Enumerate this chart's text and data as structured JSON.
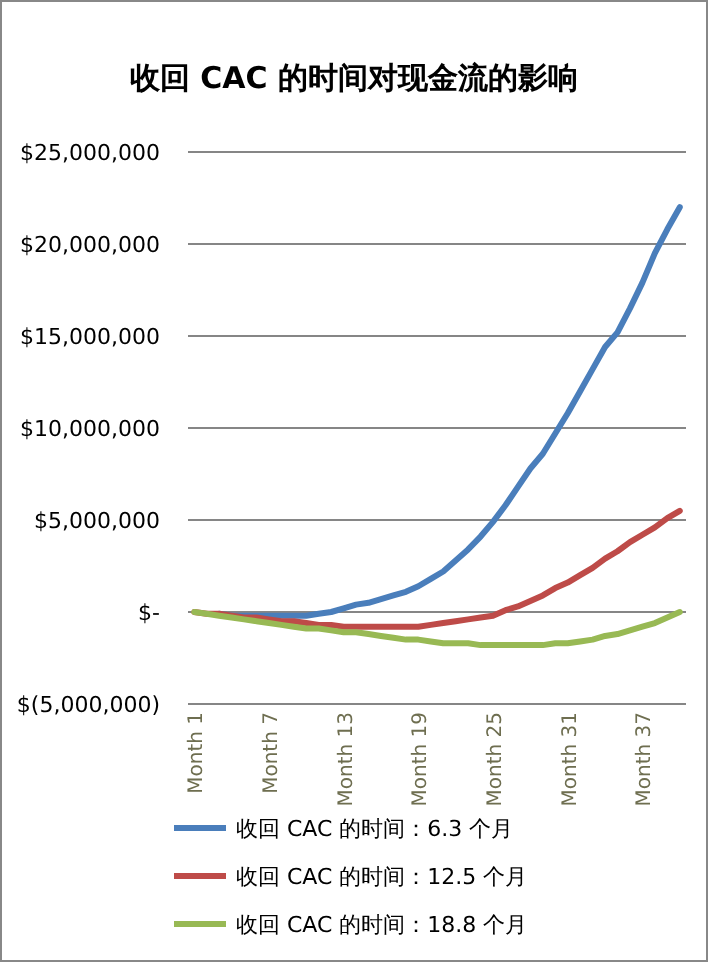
{
  "chart_data": {
    "type": "line",
    "title": "收回 CAC 的时间对现金流的影响",
    "categories": [
      "Month 1",
      null,
      null,
      null,
      null,
      null,
      "Month 7",
      null,
      null,
      null,
      null,
      null,
      "Month 13",
      null,
      null,
      null,
      null,
      null,
      "Month 19",
      null,
      null,
      null,
      null,
      null,
      "Month 25",
      null,
      null,
      null,
      null,
      null,
      "Month 31",
      null,
      null,
      null,
      null,
      null,
      "Month 37",
      null,
      null,
      null
    ],
    "ylim": [
      -5000000,
      25000000
    ],
    "yticks": [
      {
        "value": -5000000,
        "label": "$(5,000,000)"
      },
      {
        "value": 0,
        "label": "$-"
      },
      {
        "value": 5000000,
        "label": "$5,000,000"
      },
      {
        "value": 10000000,
        "label": "$10,000,000"
      },
      {
        "value": 15000000,
        "label": "$15,000,000"
      },
      {
        "value": 20000000,
        "label": "$20,000,000"
      },
      {
        "value": 25000000,
        "label": "$25,000,000"
      }
    ],
    "grid": "y",
    "legend": "bottom",
    "marker": "none",
    "line_style": "solid",
    "series": [
      {
        "name": "收回 CAC 的时间：6.3 个月",
        "color": "#4a7ebb",
        "values": [
          null,
          null,
          -100000,
          -200000,
          -200000,
          -200000,
          -200000,
          -200000,
          -200000,
          -200000,
          -100000,
          0,
          200000,
          400000,
          500000,
          700000,
          900000,
          1100000,
          1400000,
          1800000,
          2200000,
          2800000,
          3400000,
          4100000,
          4900000,
          5800000,
          6800000,
          7800000,
          8600000,
          9700000,
          10800000,
          12000000,
          13200000,
          14400000,
          15200000,
          16500000,
          17900000,
          19500000,
          20800000,
          22000000
        ]
      },
      {
        "name": "收回 CAC 的时间：12.5 个月",
        "color": "#be4b48",
        "values": [
          0,
          -100000,
          -100000,
          -200000,
          -300000,
          -300000,
          -400000,
          -500000,
          -500000,
          -600000,
          -700000,
          -700000,
          -800000,
          -800000,
          -800000,
          -800000,
          -800000,
          -800000,
          -800000,
          -700000,
          -600000,
          -500000,
          -400000,
          -300000,
          -200000,
          100000,
          300000,
          600000,
          900000,
          1300000,
          1600000,
          2000000,
          2400000,
          2900000,
          3300000,
          3800000,
          4200000,
          4600000,
          5100000,
          5500000
        ]
      },
      {
        "name": "收回 CAC 的时间：18.8 个月",
        "color": "#98b954",
        "values": [
          0,
          -100000,
          -200000,
          -300000,
          -400000,
          -500000,
          -600000,
          -700000,
          -800000,
          -900000,
          -900000,
          -1000000,
          -1100000,
          -1100000,
          -1200000,
          -1300000,
          -1400000,
          -1500000,
          -1500000,
          -1600000,
          -1700000,
          -1700000,
          -1700000,
          -1800000,
          -1800000,
          -1800000,
          -1800000,
          -1800000,
          -1800000,
          -1700000,
          -1700000,
          -1600000,
          -1500000,
          -1300000,
          -1200000,
          -1000000,
          -800000,
          -600000,
          -300000,
          0
        ]
      }
    ]
  }
}
